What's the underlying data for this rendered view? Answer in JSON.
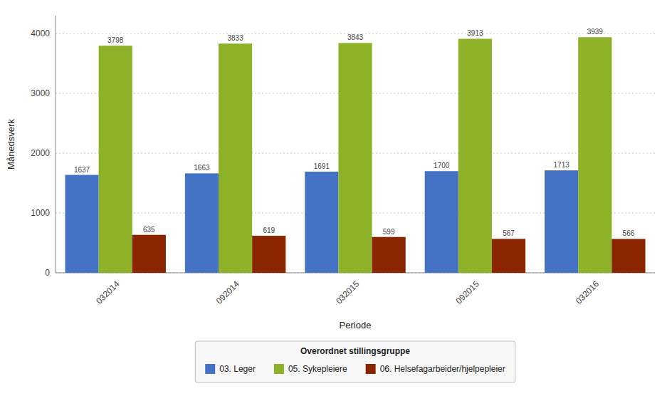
{
  "chart_data": {
    "type": "bar",
    "categories": [
      "032014",
      "092014",
      "032015",
      "092015",
      "032016"
    ],
    "series": [
      {
        "name": "03. Leger",
        "color": "#4472C4",
        "values": [
          1637,
          1663,
          1691,
          1700,
          1713
        ]
      },
      {
        "name": "05. Sykepleiere",
        "color": "#8DB228",
        "values": [
          3798,
          3833,
          3843,
          3913,
          3939
        ]
      },
      {
        "name": "06. Helsefagarbeider/hjelpepleier",
        "color": "#8B2500",
        "values": [
          635,
          619,
          599,
          567,
          566
        ]
      }
    ],
    "xlabel": "Periode",
    "ylabel": "Månedsverk",
    "legend_title": "Overordnet stillingsgruppe",
    "ylim": [
      0,
      4300
    ],
    "yticks": [
      0,
      1000,
      2000,
      3000,
      4000
    ],
    "grid": true,
    "data_labels": true,
    "legend": "bottom"
  }
}
